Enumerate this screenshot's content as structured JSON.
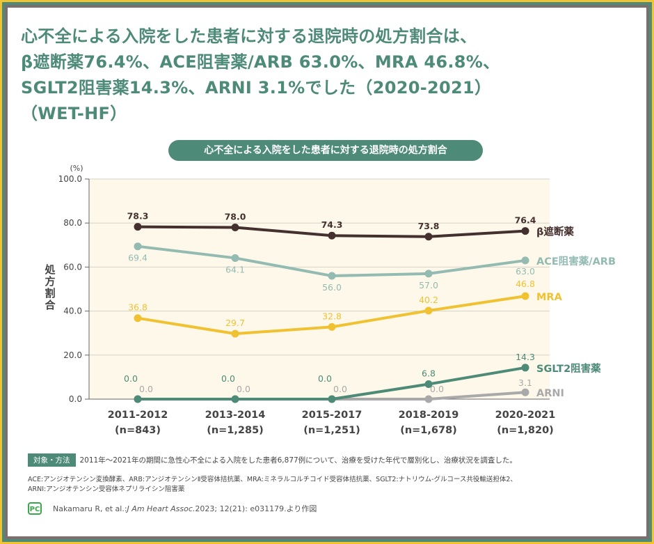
{
  "headline": {
    "lines": [
      "心不全による入院をした患者に対する退院時の処方割合は、",
      "β遮断薬76.4%、ACE阻害薬/ARB 63.0%、MRA 46.8%、",
      "SGLT2阻害薬14.3%、ARNI 3.1%でした（2020-2021）",
      "（WET-HF）"
    ]
  },
  "chart_data": {
    "type": "line",
    "title": "心不全による入院をした患者に対する退院時の処方割合",
    "ylabel": "処方割合",
    "yunit": "(%)",
    "ylim": [
      0,
      100
    ],
    "yticks": [
      "100.0",
      "80.0",
      "60.0",
      "40.0",
      "20.0",
      "0.0"
    ],
    "ytick_values": [
      100,
      80,
      60,
      40,
      20,
      0
    ],
    "grid": true,
    "categories": [
      "2011-2012",
      "2013-2014",
      "2015-2017",
      "2018-2019",
      "2020-2021"
    ],
    "category_n": [
      "(n=843)",
      "(n=1,285)",
      "(n=1,251)",
      "(n=1,678)",
      "(n=1,820)"
    ],
    "series": [
      {
        "name": "β遮断薬",
        "color": "#44302f",
        "values": [
          78.3,
          78.0,
          74.3,
          73.8,
          76.4
        ],
        "labels": [
          "78.3",
          "78.0",
          "74.3",
          "73.8",
          "76.4"
        ],
        "label_pos": "above"
      },
      {
        "name": "ACE阻害薬/ARB",
        "color": "#93bbb2",
        "values": [
          69.4,
          64.1,
          56.0,
          57.0,
          63.0
        ],
        "labels": [
          "69.4",
          "64.1",
          "56.0",
          "57.0",
          "63.0"
        ],
        "label_pos": "below"
      },
      {
        "name": "MRA",
        "color": "#f0c232",
        "values": [
          36.8,
          29.7,
          32.8,
          40.2,
          46.8
        ],
        "labels": [
          "36.8",
          "29.7",
          "32.8",
          "40.2",
          "46.8"
        ],
        "label_pos": "above"
      },
      {
        "name": "SGLT2阻害薬",
        "color": "#4d8a78",
        "values": [
          0.0,
          0.0,
          0.0,
          6.8,
          14.3
        ],
        "labels": [
          "0.0",
          "0.0",
          "0.0",
          "6.8",
          "14.3"
        ],
        "label_pos": "above"
      },
      {
        "name": "ARNI",
        "color": "#a9a9a9",
        "values": [
          0.0,
          0.0,
          0.0,
          0.0,
          3.1
        ],
        "labels": [
          "0.0",
          "0.0",
          "0.0",
          "0.0",
          "3.1"
        ],
        "label_pos": "above"
      }
    ]
  },
  "method": {
    "tag": "対象・方法",
    "text": "2011年～2021年の期間に急性心不全による入院をした患者6,877例について、治療を受けた年代で層別化し、治療状況を調査した。"
  },
  "abbreviations": [
    "ACE:アンジオテンシン変換酵素、ARB:アンジオテンシンⅡ受容体拮抗薬、MRA:ミネラルコルチコイド受容体拮抗薬、SGLT2:ナトリウム-グルコース共役輸送担体2、",
    "ARNI:アンジオテンシン受容体ネプリライシン阻害薬"
  ],
  "citation": {
    "logo": "PC",
    "authors": "Nakamaru R, et al.: ",
    "journal": "J Am Heart Assoc.",
    "rest": " 2023; 12(21): e031179.より作図"
  }
}
